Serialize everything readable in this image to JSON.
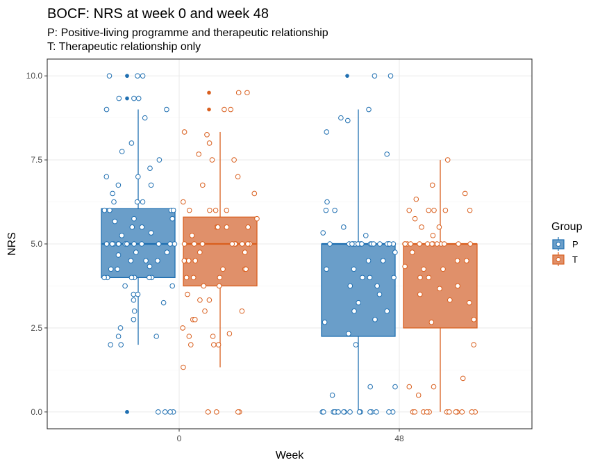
{
  "chart_data": {
    "type": "boxplot",
    "title": "BOCF: NRS at week 0 and week 48",
    "subtitle_lines": [
      "P: Positive-living programme and therapeutic relationship",
      "T: Therapeutic relationship only"
    ],
    "xlabel": "Week",
    "ylabel": "NRS",
    "categories": [
      "0",
      "48"
    ],
    "ylim": [
      -0.5,
      10.5
    ],
    "yticks": [
      0.0,
      2.5,
      5.0,
      7.5,
      10.0
    ],
    "ytick_labels": [
      "0.0",
      "2.5",
      "5.0",
      "7.5",
      "10.0"
    ],
    "grid": true,
    "legend": {
      "title": "Group",
      "position": "right",
      "entries": [
        "P",
        "T"
      ]
    },
    "colors": {
      "P": "#1f6fb1",
      "T": "#d95f1e",
      "P_fill": "#6a9ec9",
      "T_fill": "#e0906a"
    },
    "series": [
      {
        "name": "P",
        "category": "0",
        "box": {
          "whisker_low": 2.0,
          "q1": 4.0,
          "median": 5.0,
          "q3": 6.05,
          "whisker_high": 9.0
        },
        "outliers": [
          10.0,
          10.0,
          9.33,
          0.0,
          0.0
        ],
        "points": [
          10,
          10,
          10,
          9.33,
          9.33,
          9.33,
          9,
          9,
          8.75,
          8,
          7.75,
          7.5,
          7.25,
          7,
          7,
          6.75,
          6.75,
          6.5,
          6.25,
          6.25,
          6.25,
          6,
          6,
          6,
          6,
          5.75,
          5.75,
          5.67,
          5.5,
          5.5,
          5.33,
          5.25,
          5,
          5,
          5,
          5,
          5,
          5,
          5,
          5,
          5,
          5,
          5,
          5,
          5,
          4.75,
          4.75,
          4.67,
          4.5,
          4.5,
          4.5,
          4.33,
          4.25,
          4.25,
          4,
          4,
          4,
          4,
          4,
          4,
          3.75,
          3.75,
          3.5,
          3.5,
          3.33,
          3.25,
          3,
          2.75,
          2.5,
          2.25,
          2.25,
          2,
          2,
          0,
          0,
          0,
          0
        ]
      },
      {
        "name": "T",
        "category": "0",
        "box": {
          "whisker_low": 1.33,
          "q1": 3.75,
          "median": 5.0,
          "q3": 5.8,
          "whisker_high": 8.33
        },
        "outliers": [
          9.5,
          9.0,
          0.0
        ],
        "points": [
          9.5,
          9.5,
          9,
          9,
          8.33,
          8.25,
          8,
          7.67,
          7.5,
          7.5,
          7,
          6.75,
          6.5,
          6.25,
          6,
          6,
          6,
          6,
          5.75,
          5.5,
          5.5,
          5.5,
          5.5,
          5.25,
          5,
          5,
          5,
          5,
          5,
          5,
          5,
          5,
          5,
          4.75,
          4.75,
          4.5,
          4.5,
          4.5,
          4.5,
          4.25,
          4.25,
          4.25,
          4,
          4,
          4,
          3.75,
          3.75,
          3.5,
          3.33,
          3.33,
          3,
          3,
          2.75,
          2.75,
          2.5,
          2.33,
          2.25,
          2.25,
          2,
          2,
          2,
          1.33,
          0,
          0,
          0,
          0
        ]
      },
      {
        "name": "P",
        "category": "48",
        "box": {
          "whisker_low": 0.0,
          "q1": 2.25,
          "median": 5.0,
          "q3": 5.0,
          "whisker_high": 9.0
        },
        "outliers": [
          10.0
        ],
        "points": [
          10,
          10,
          9,
          8.75,
          8.67,
          8.33,
          7.67,
          6.25,
          6,
          6,
          5.5,
          5.33,
          5.25,
          5,
          5,
          5,
          5,
          5,
          5,
          5,
          5,
          5,
          5,
          5,
          5,
          5,
          5,
          5,
          5,
          5,
          5,
          5,
          5,
          5,
          4.75,
          4.5,
          4.5,
          4.25,
          4.25,
          4,
          4,
          4,
          3.75,
          3.75,
          3.5,
          3.25,
          3,
          3,
          2.75,
          2.67,
          2.33,
          2,
          0.75,
          0.75,
          0.5,
          0,
          0,
          0,
          0,
          0,
          0,
          0,
          0,
          0,
          0,
          0,
          0,
          0,
          0,
          0,
          0
        ]
      },
      {
        "name": "T",
        "category": "48",
        "box": {
          "whisker_low": 0.0,
          "q1": 2.5,
          "median": 5.0,
          "q3": 5.0,
          "whisker_high": 7.5
        },
        "outliers": [],
        "points": [
          7.5,
          6.75,
          6.5,
          6.33,
          6,
          6,
          6,
          6,
          6,
          5.75,
          5.5,
          5.5,
          5.25,
          5,
          5,
          5,
          5,
          5,
          5,
          5,
          5,
          5,
          5,
          5,
          5,
          5,
          4.75,
          4.5,
          4.5,
          4.33,
          4.25,
          4.25,
          4,
          4,
          3.75,
          3.67,
          3.5,
          3.33,
          3.25,
          2.75,
          2.67,
          2,
          1,
          0.75,
          0.75,
          0.5,
          0,
          0,
          0,
          0,
          0,
          0,
          0,
          0,
          0,
          0,
          0,
          0
        ]
      }
    ]
  }
}
